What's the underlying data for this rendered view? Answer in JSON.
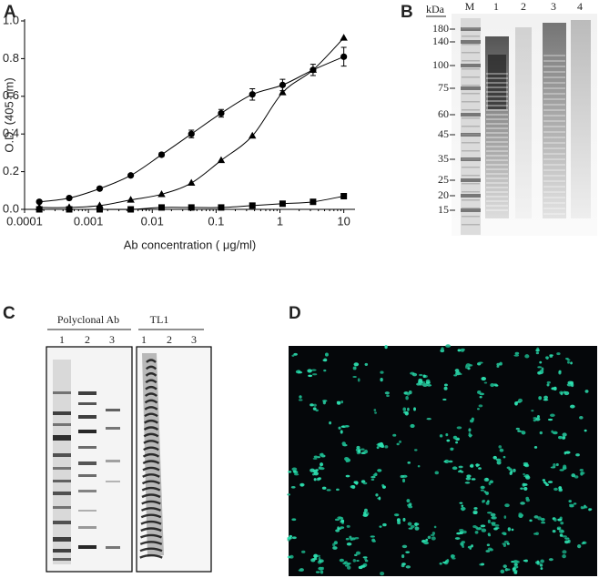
{
  "chart_data": {
    "type": "scatter",
    "panel_label": "A",
    "y_label": "O.D. (405 nm)",
    "x_label": "Ab concentration ( μg/ml)",
    "log_x": true,
    "xlim": [
      0.0001,
      15
    ],
    "xticks": [
      0.0001,
      0.001,
      0.01,
      0.1,
      1,
      10
    ],
    "ylim": [
      0,
      1
    ],
    "yticks": [
      {
        "value": 0,
        "label": "0.0"
      },
      0.2,
      0.4,
      0.6,
      0.8,
      {
        "value": 1,
        "label": "1.0"
      }
    ],
    "x": [
      0.00017,
      0.0005,
      0.0015,
      0.0046,
      0.014,
      0.041,
      0.12,
      0.37,
      1.1,
      3.3,
      10
    ],
    "series": [
      {
        "marker": "circle",
        "color": "#000000",
        "values": [
          0.04,
          0.06,
          0.11,
          0.18,
          0.29,
          0.4,
          0.51,
          0.61,
          0.66,
          0.74,
          0.81
        ],
        "errors": [
          0,
          0,
          0,
          0,
          0.01,
          0.02,
          0.02,
          0.03,
          0.03,
          0.03,
          0.05
        ]
      },
      {
        "marker": "triangle",
        "color": "#000000",
        "values": [
          0.01,
          0.01,
          0.02,
          0.05,
          0.08,
          0.14,
          0.26,
          0.39,
          0.62,
          0.74,
          0.91
        ]
      },
      {
        "marker": "square",
        "color": "#000000",
        "values": [
          0,
          0,
          0,
          0,
          0.01,
          0.01,
          0.01,
          0.02,
          0.03,
          0.04,
          0.07
        ]
      }
    ]
  },
  "panels": {
    "B": {
      "label": "B",
      "unit": "kDa",
      "lanes": [
        "M",
        "1",
        "2",
        "3",
        "4"
      ],
      "markers": [
        180,
        140,
        100,
        75,
        60,
        45,
        35,
        25,
        20,
        15
      ]
    },
    "C": {
      "label": "C",
      "groups": [
        {
          "title": "Polyclonal Ab",
          "lanes": [
            "1",
            "2",
            "3"
          ]
        },
        {
          "title": "TL1",
          "lanes": [
            "1",
            "2",
            "3"
          ]
        }
      ]
    },
    "D": {
      "label": "D"
    }
  }
}
